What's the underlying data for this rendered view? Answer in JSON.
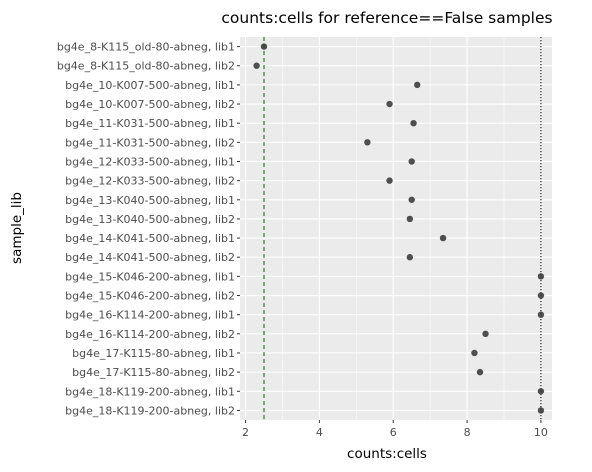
{
  "chart_data": {
    "type": "scatter",
    "title": "counts:cells for reference==False samples",
    "xlabel": "counts:cells",
    "ylabel": "sample_lib",
    "xlim": [
      1.85,
      10.3
    ],
    "xticks": [
      2,
      4,
      6,
      8,
      10
    ],
    "grid": true,
    "categories": [
      "bg4e_8-K115_old-80-abneg, lib1",
      "bg4e_8-K115_old-80-abneg, lib2",
      "bg4e_10-K007-500-abneg, lib1",
      "bg4e_10-K007-500-abneg, lib2",
      "bg4e_11-K031-500-abneg, lib1",
      "bg4e_11-K031-500-abneg, lib2",
      "bg4e_12-K033-500-abneg, lib1",
      "bg4e_12-K033-500-abneg, lib2",
      "bg4e_13-K040-500-abneg, lib1",
      "bg4e_13-K040-500-abneg, lib2",
      "bg4e_14-K041-500-abneg, lib1",
      "bg4e_14-K041-500-abneg, lib2",
      "bg4e_15-K046-200-abneg, lib1",
      "bg4e_15-K046-200-abneg, lib2",
      "bg4e_16-K114-200-abneg, lib1",
      "bg4e_16-K114-200-abneg, lib2",
      "bg4e_17-K115-80-abneg, lib1",
      "bg4e_17-K115-80-abneg, lib2",
      "bg4e_18-K119-200-abneg, lib1",
      "bg4e_18-K119-200-abneg, lib2"
    ],
    "values": [
      2.5,
      2.3,
      6.65,
      5.9,
      6.55,
      5.3,
      6.5,
      5.9,
      6.5,
      6.45,
      7.35,
      6.45,
      10,
      10,
      10,
      8.5,
      8.2,
      8.35,
      10,
      10
    ],
    "reference_lines": [
      {
        "x": 2.5,
        "style": "dashed",
        "color": "#006400"
      },
      {
        "x": 10,
        "style": "dotted",
        "color": "#000000"
      }
    ],
    "colors": {
      "panel": "#ebebeb",
      "grid_major": "#ffffff",
      "point": "#333333"
    }
  }
}
